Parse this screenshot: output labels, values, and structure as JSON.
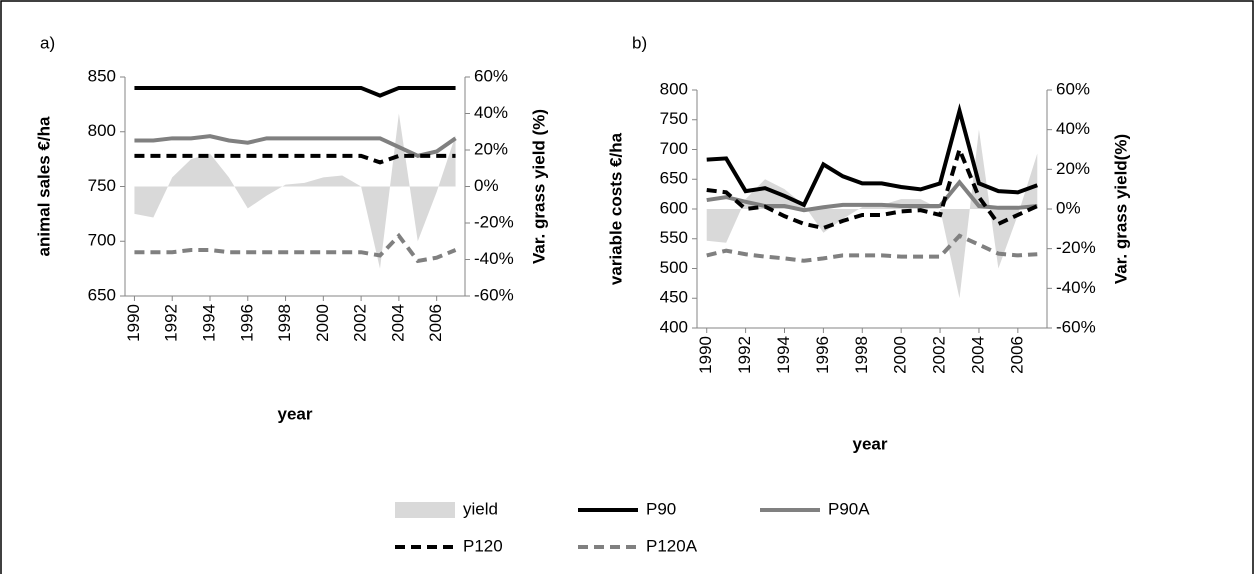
{
  "chart_data": [
    {
      "type": "line",
      "title": "a)",
      "ylabel": "animal sales €/ha",
      "y2label": "Var. grass yield (%)",
      "xlabel": "year",
      "x": [
        1990,
        1991,
        1992,
        1993,
        1994,
        1995,
        1996,
        1997,
        1998,
        1999,
        2000,
        2001,
        2002,
        2003,
        2004,
        2005,
        2006,
        2007
      ],
      "xlim": [
        1989.5,
        2007.5
      ],
      "xticks": [
        1990,
        1992,
        1994,
        1996,
        1998,
        2000,
        2002,
        2004,
        2006
      ],
      "ylim": [
        650,
        850
      ],
      "yticks": [
        650,
        700,
        750,
        800,
        850
      ],
      "y2lim": [
        -60,
        60
      ],
      "y2ticks": [
        {
          "value": -60,
          "label": "-60%"
        },
        {
          "value": -40,
          "label": "-40%"
        },
        {
          "value": -20,
          "label": "-20%"
        },
        {
          "value": 0,
          "label": "0%"
        },
        {
          "value": 20,
          "label": "20%"
        },
        {
          "value": 40,
          "label": "40%"
        },
        {
          "value": 60,
          "label": "60%"
        }
      ],
      "series": [
        {
          "name": "yield",
          "kind": "area",
          "axis": "y2",
          "color": "#d9d9d9",
          "values": [
            -15,
            -17,
            5,
            15,
            18,
            5,
            -12,
            -5,
            1,
            2,
            5,
            6,
            0,
            -45,
            40,
            -30,
            -3,
            28
          ]
        },
        {
          "name": "P90",
          "kind": "line",
          "style": "solid",
          "color": "#000000",
          "values": [
            840,
            840,
            840,
            840,
            840,
            840,
            840,
            840,
            840,
            840,
            840,
            840,
            840,
            833,
            840,
            840,
            840,
            840
          ]
        },
        {
          "name": "P90A",
          "kind": "line",
          "style": "solid",
          "color": "#808080",
          "values": [
            792,
            792,
            794,
            794,
            796,
            792,
            790,
            794,
            794,
            794,
            794,
            794,
            794,
            794,
            786,
            778,
            782,
            794
          ]
        },
        {
          "name": "P120",
          "kind": "line",
          "style": "dashed",
          "color": "#000000",
          "values": [
            778,
            778,
            778,
            778,
            778,
            778,
            778,
            778,
            778,
            778,
            778,
            778,
            778,
            772,
            778,
            778,
            778,
            778
          ]
        },
        {
          "name": "P120A",
          "kind": "line",
          "style": "dashed",
          "color": "#808080",
          "values": [
            690,
            690,
            690,
            692,
            692,
            690,
            690,
            690,
            690,
            690,
            690,
            690,
            690,
            687,
            705,
            682,
            685,
            692
          ]
        }
      ]
    },
    {
      "type": "line",
      "title": "b)",
      "ylabel": "variable costs €/ha",
      "y2label": "Var. grass yield(%)",
      "xlabel": "year",
      "x": [
        1990,
        1991,
        1992,
        1993,
        1994,
        1995,
        1996,
        1997,
        1998,
        1999,
        2000,
        2001,
        2002,
        2003,
        2004,
        2005,
        2006,
        2007
      ],
      "xlim": [
        1989.5,
        2007.5
      ],
      "xticks": [
        1990,
        1992,
        1994,
        1996,
        1998,
        2000,
        2002,
        2004,
        2006
      ],
      "ylim": [
        400,
        800
      ],
      "yticks": [
        400,
        450,
        500,
        550,
        600,
        650,
        700,
        750,
        800
      ],
      "y2lim": [
        -60,
        60
      ],
      "y2ticks": [
        {
          "value": -60,
          "label": "-60%"
        },
        {
          "value": -40,
          "label": "-40%"
        },
        {
          "value": -20,
          "label": "-20%"
        },
        {
          "value": 0,
          "label": "0%"
        },
        {
          "value": 20,
          "label": "20%"
        },
        {
          "value": 40,
          "label": "40%"
        },
        {
          "value": 60,
          "label": "60%"
        }
      ],
      "series": [
        {
          "name": "yield",
          "kind": "area",
          "axis": "y2",
          "color": "#d9d9d9",
          "values": [
            -16,
            -17,
            5,
            15,
            10,
            2,
            -12,
            -5,
            1,
            2,
            5,
            5,
            0,
            -45,
            40,
            -30,
            -3,
            28
          ]
        },
        {
          "name": "P90",
          "kind": "line",
          "style": "solid",
          "color": "#000000",
          "values": [
            683,
            685,
            630,
            635,
            622,
            607,
            675,
            655,
            643,
            643,
            637,
            633,
            643,
            765,
            643,
            630,
            628,
            640
          ]
        },
        {
          "name": "P90A",
          "kind": "line",
          "style": "solid",
          "color": "#808080",
          "values": [
            615,
            620,
            612,
            605,
            605,
            598,
            603,
            607,
            607,
            607,
            605,
            605,
            605,
            645,
            605,
            602,
            602,
            605
          ]
        },
        {
          "name": "P120",
          "kind": "line",
          "style": "dashed",
          "color": "#000000",
          "values": [
            632,
            628,
            600,
            604,
            588,
            575,
            568,
            580,
            590,
            590,
            596,
            598,
            590,
            700,
            620,
            575,
            590,
            605
          ]
        },
        {
          "name": "P120A",
          "kind": "line",
          "style": "dashed",
          "color": "#808080",
          "values": [
            522,
            530,
            524,
            520,
            517,
            513,
            517,
            522,
            522,
            522,
            520,
            520,
            520,
            555,
            540,
            525,
            522,
            524
          ]
        }
      ]
    }
  ]
}
